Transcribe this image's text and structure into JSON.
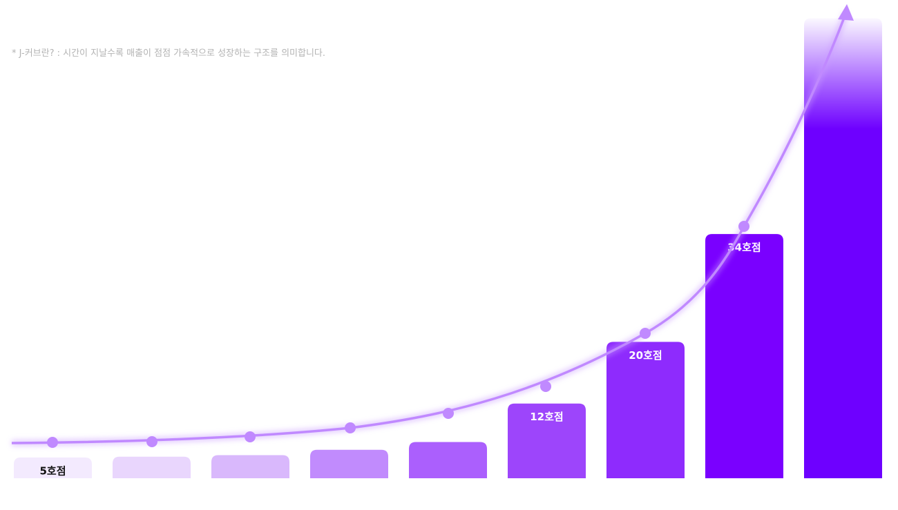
{
  "chart_data": {
    "type": "bar",
    "note": "* J-커브란? : 시간이 지날수록 매출이 점점 가속적으로 성장하는 구조를 의미합니다.",
    "categories": [
      null,
      null,
      null,
      null,
      null,
      null,
      null,
      null,
      null
    ],
    "values": [
      5,
      5.1,
      5.3,
      6,
      7,
      12,
      20,
      34,
      62
    ],
    "value_labels": [
      "5호점",
      null,
      null,
      null,
      null,
      "12호점",
      "20호점",
      "34호점",
      null
    ],
    "colors": [
      "#f3eafe",
      "#e9d6fd",
      "#d9b8fc",
      "#c18bfd",
      "#ab5ffd",
      "#9d45fb",
      "#8e2bfd",
      "#7a00ff",
      "#6e00ff"
    ],
    "ylim": [
      2.3,
      62.4
    ]
  }
}
